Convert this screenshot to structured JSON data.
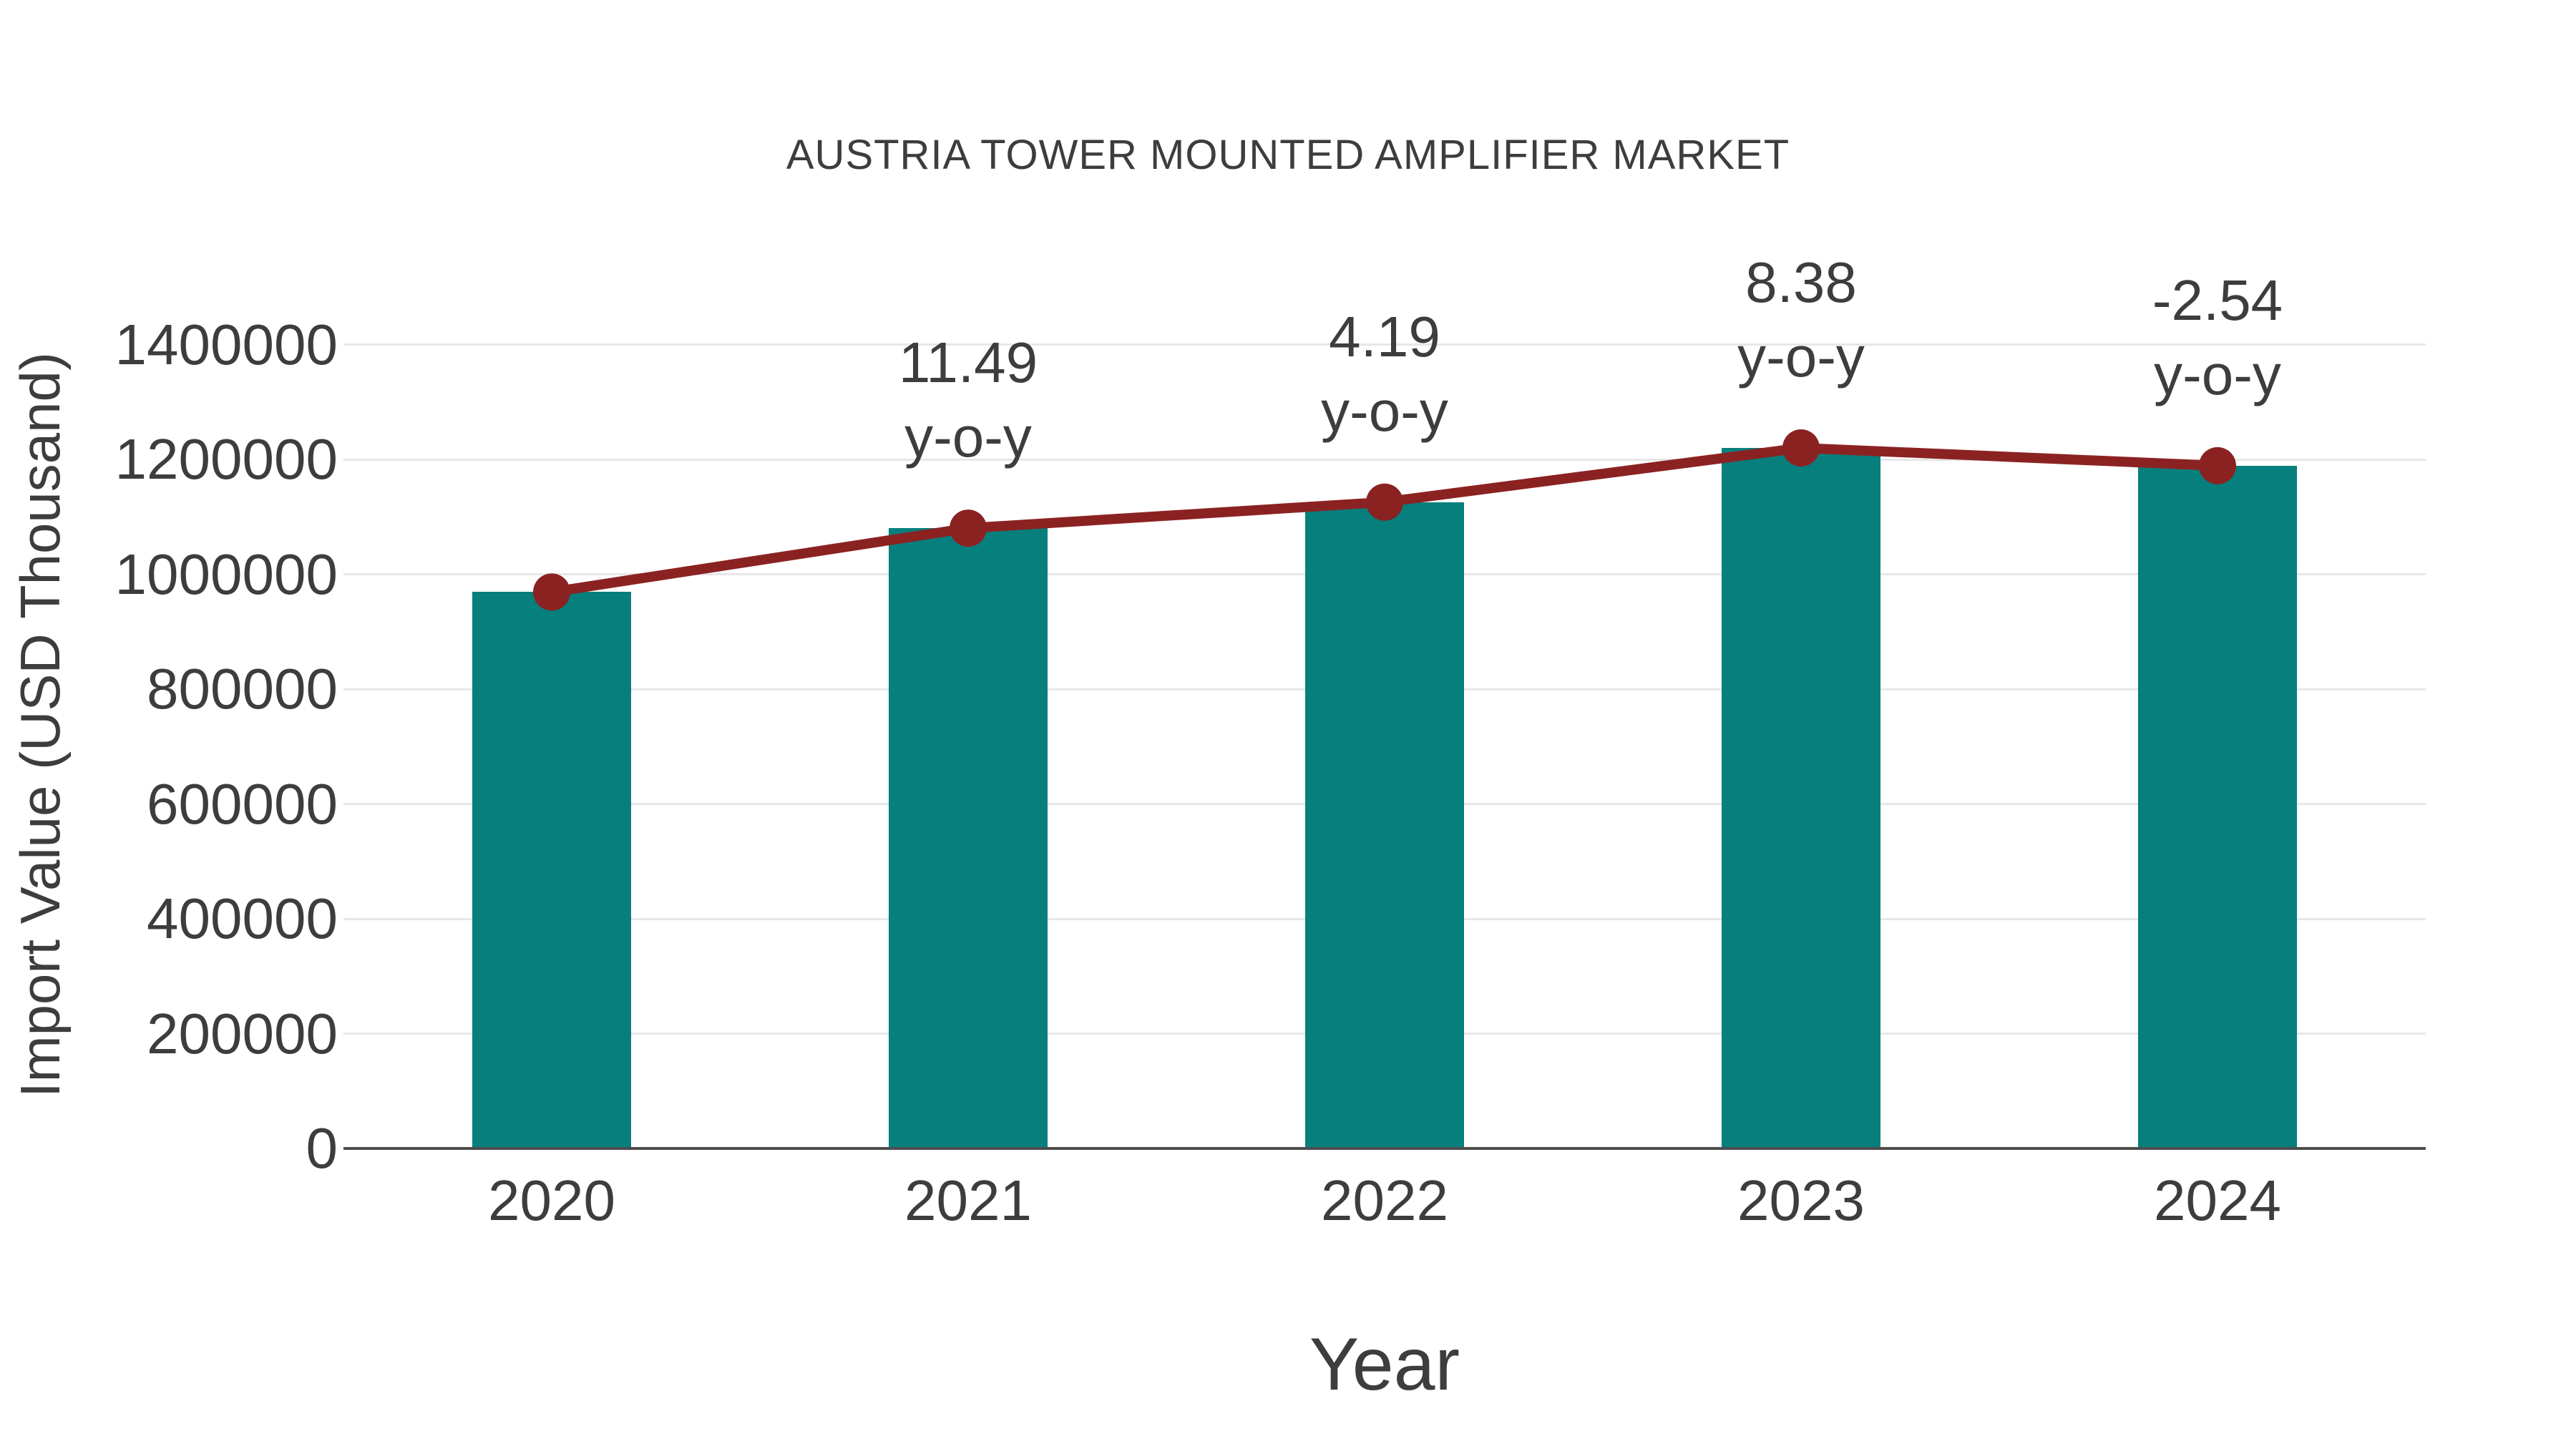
{
  "chart_data": {
    "type": "combo-bar-line",
    "title": "AUSTRIA TOWER MOUNTED AMPLIFIER MARKET",
    "xlabel": "Year",
    "ylabel": "Import Value (USD Thousand)",
    "categories": [
      "2020",
      "2021",
      "2022",
      "2023",
      "2024"
    ],
    "series": [
      {
        "name": "Import Value bars",
        "type": "bar",
        "values": [
          969000,
          1080300,
          1125600,
          1219900,
          1188900
        ]
      },
      {
        "name": "Import Value trend line",
        "type": "line",
        "values": [
          969000,
          1080300,
          1125600,
          1219900,
          1188900
        ]
      }
    ],
    "yoy_annotations": [
      {
        "category": "2021",
        "value": "11.49",
        "suffix": "y-o-y"
      },
      {
        "category": "2022",
        "value": "4.19",
        "suffix": "y-o-y"
      },
      {
        "category": "2023",
        "value": "8.38",
        "suffix": "y-o-y"
      },
      {
        "category": "2024",
        "value": "-2.54",
        "suffix": "y-o-y"
      }
    ],
    "ylim": [
      0,
      1400000
    ],
    "ytick_step": 200000,
    "ytick_labels": [
      "0",
      "200000",
      "400000",
      "600000",
      "800000",
      "1000000",
      "1200000",
      "1400000"
    ],
    "grid": true,
    "legend": "none"
  },
  "colors": {
    "bar": "#067f7d",
    "line": "#8b2222",
    "marker": "#8b2222",
    "grid": "#e7e7e7",
    "axis": "#4d4d4d",
    "text": "#3d3d3d",
    "background": "#ffffff"
  }
}
